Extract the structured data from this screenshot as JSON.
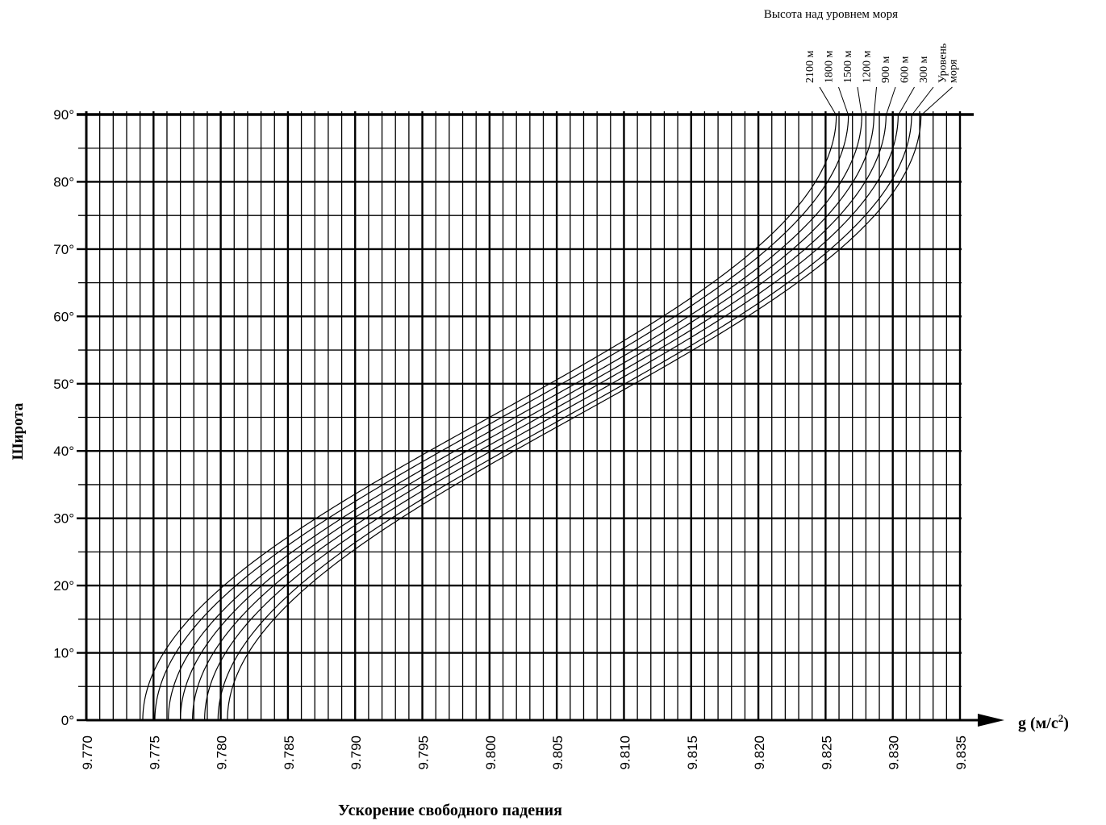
{
  "chart_data": {
    "type": "line",
    "title": "",
    "xlabel": "Ускорение свободного падения",
    "ylabel": "Широта",
    "axis_unit_label": "g (м/с",
    "axis_unit_sup": "2",
    "axis_unit_close": ")",
    "legend_title": "Высота над уровнем моря",
    "xlim": [
      9.77,
      9.835
    ],
    "ylim": [
      0,
      90
    ],
    "x_ticks": [
      "9.770",
      "9.775",
      "9.780",
      "9.785",
      "9.790",
      "9.795",
      "9.800",
      "9.805",
      "9.810",
      "9.815",
      "9.820",
      "9.825",
      "9.830",
      "9.835"
    ],
    "y_ticks": [
      "0°",
      "10°",
      "20°",
      "30°",
      "40°",
      "50°",
      "60°",
      "70°",
      "80°",
      "90°"
    ],
    "grid": true,
    "legend_position": "top-right",
    "series": [
      {
        "name": "2100 м",
        "g_equator": 9.7742,
        "g_pole": 9.8258
      },
      {
        "name": "1800 м",
        "g_equator": 9.7751,
        "g_pole": 9.8267
      },
      {
        "name": "1500 м",
        "g_equator": 9.7761,
        "g_pole": 9.8277
      },
      {
        "name": "1200 м",
        "g_equator": 9.777,
        "g_pole": 9.8286
      },
      {
        "name": "900 м",
        "g_equator": 9.7779,
        "g_pole": 9.8295
      },
      {
        "name": "600 м",
        "g_equator": 9.7788,
        "g_pole": 9.8304
      },
      {
        "name": "300 м",
        "g_equator": 9.7798,
        "g_pole": 9.8314
      },
      {
        "name": "Уровень моря",
        "g_equator": 9.7805,
        "g_pole": 9.8321
      }
    ],
    "series_color": "#000000"
  }
}
